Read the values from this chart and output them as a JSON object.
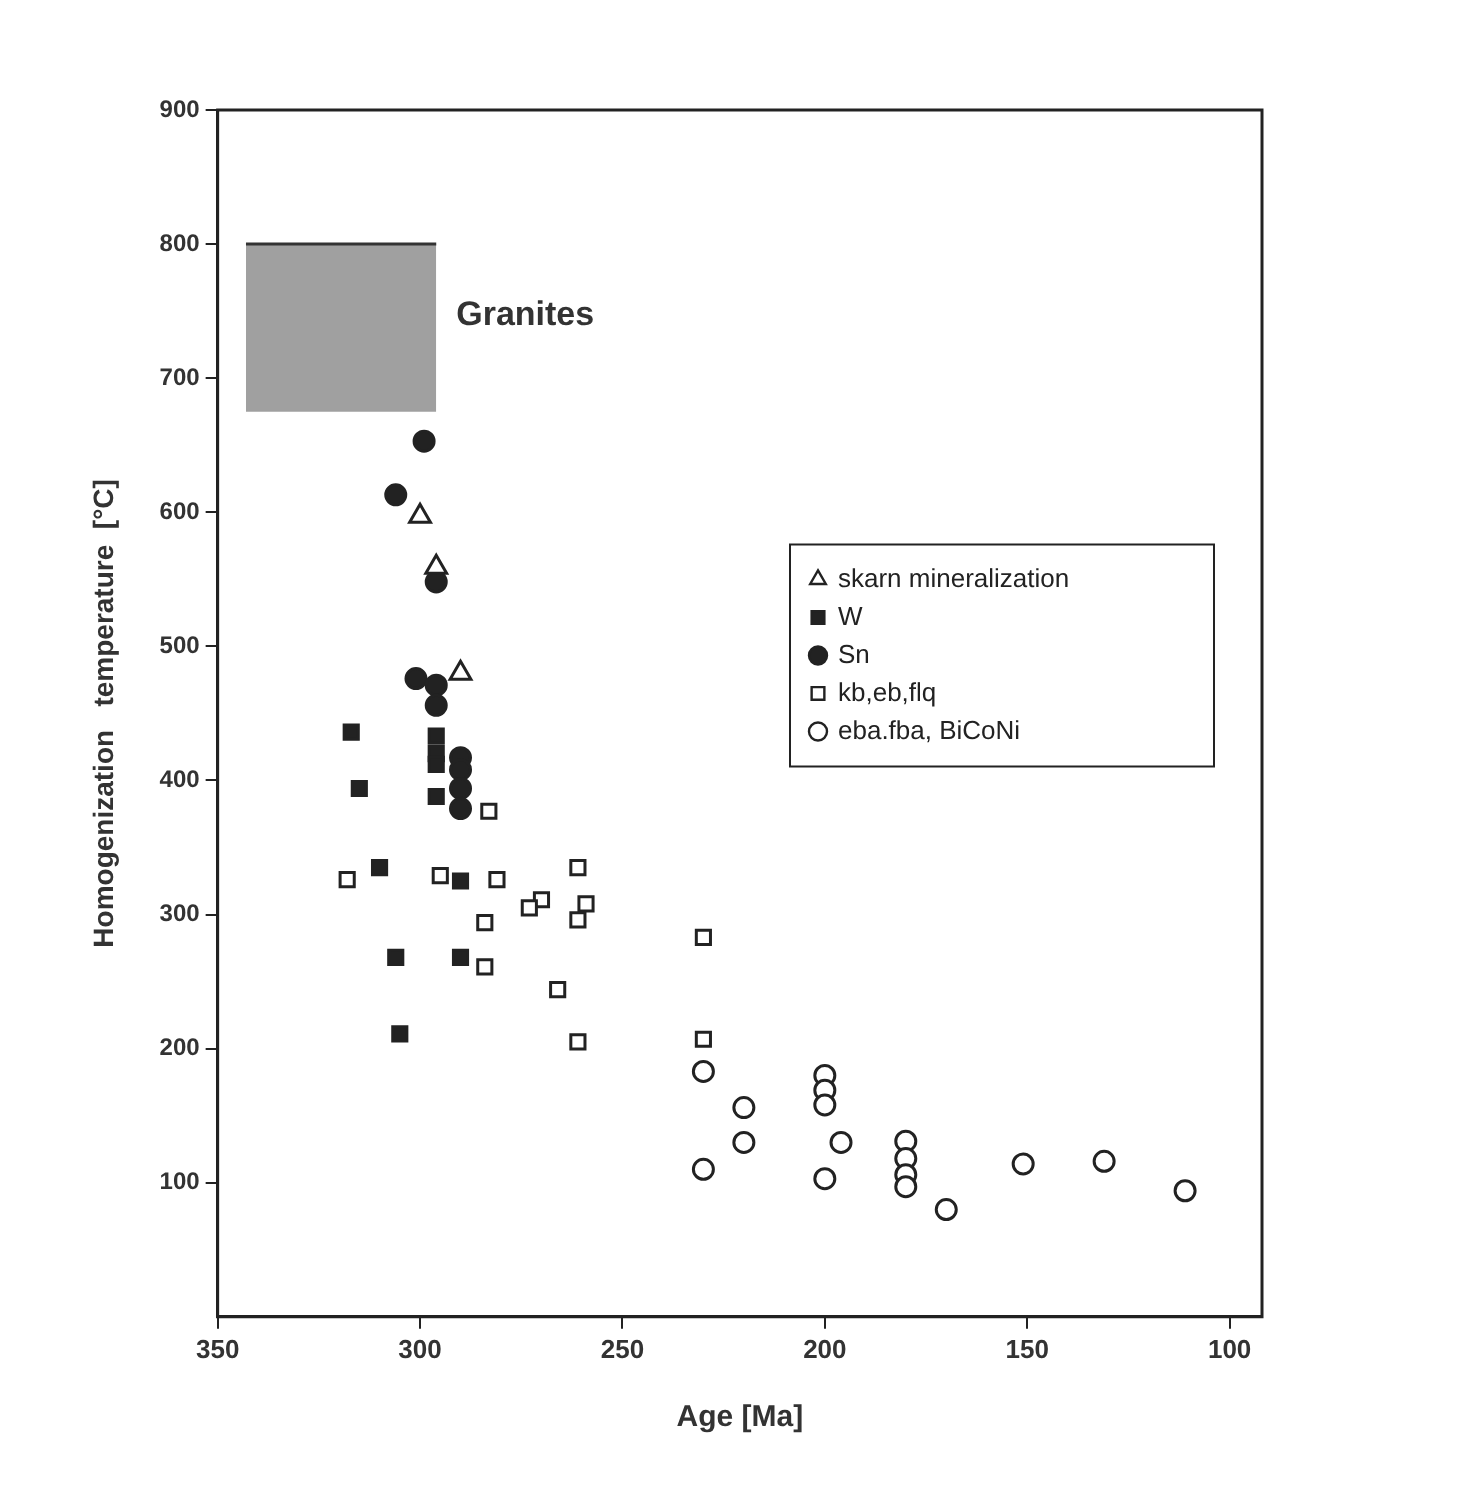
{
  "chart_data": {
    "type": "scatter",
    "xlabel": "Age [Ma]",
    "ylabel": "Homogenization   temperature  [°C]",
    "xlim": [
      350,
      92
    ],
    "xticks": [
      350,
      300,
      250,
      200,
      150,
      100
    ],
    "ylim": [
      0,
      900
    ],
    "yticks": [
      100,
      200,
      300,
      400,
      500,
      600,
      700,
      800,
      900
    ],
    "grid": false,
    "legend": "right",
    "series": [
      {
        "type": "line",
        "name": "Granites",
        "color": "#333333",
        "marker": "none",
        "x": [
          343,
          296
        ],
        "values": [
          800,
          800
        ],
        "lower": [
          675,
          675
        ],
        "upper": [
          800,
          800
        ]
      },
      {
        "name": "skarn mineralization",
        "color": "#ffffff",
        "marker": "triangle",
        "x": [
          300,
          296,
          290
        ],
        "values": [
          597,
          559,
          480
        ]
      },
      {
        "name": "W",
        "color": "#222222",
        "marker": "square",
        "x": [
          317,
          296,
          296,
          296,
          315,
          296,
          310,
          290,
          306,
          290,
          305
        ],
        "values": [
          436,
          433,
          420,
          412,
          394,
          388,
          335,
          325,
          268,
          268,
          211
        ]
      },
      {
        "name": "Sn",
        "color": "#222222",
        "marker": "circle",
        "x": [
          299,
          306,
          296,
          301,
          296,
          296,
          290,
          290,
          290,
          290
        ],
        "values": [
          653,
          613,
          548,
          476,
          471,
          456,
          417,
          408,
          394,
          379
        ]
      },
      {
        "name": "kb,eb,flq",
        "color": "#ffffff",
        "marker": "square",
        "x": [
          283,
          318,
          295,
          281,
          261,
          270,
          273,
          259,
          261,
          284,
          284,
          266,
          261,
          230,
          230
        ],
        "values": [
          377,
          326,
          329,
          326,
          335,
          311,
          305,
          308,
          296,
          294,
          261,
          244,
          205,
          283,
          207
        ]
      },
      {
        "name": "eba.fba, BiCoNi",
        "color": "#ffffff",
        "marker": "circle",
        "x": [
          230,
          230,
          220,
          220,
          200,
          200,
          200,
          196,
          200,
          180,
          180,
          180,
          180,
          170,
          151,
          131,
          111
        ],
        "values": [
          183,
          110,
          156,
          130,
          180,
          169,
          158,
          130,
          103,
          131,
          118,
          106,
          97,
          80,
          114,
          116,
          94
        ]
      }
    ]
  }
}
